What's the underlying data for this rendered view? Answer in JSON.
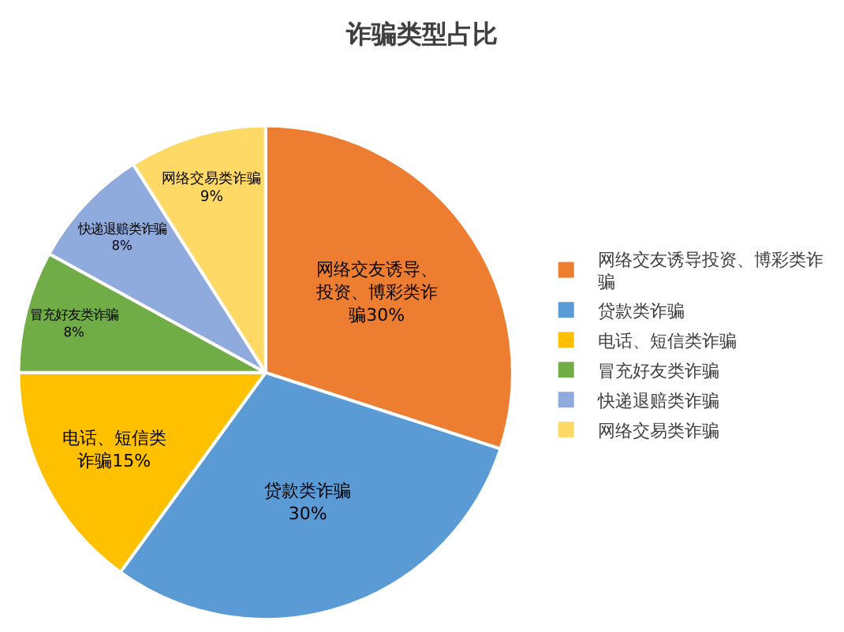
{
  "chart_data": {
    "type": "pie",
    "title": "诈骗类型占比",
    "categories": [
      "网络交友诱导投资、博彩类诈骗",
      "贷款类诈骗",
      "电话、短信类诈骗",
      "冒充好友类诈骗",
      "快递退赔类诈骗",
      "网络交易类诈骗"
    ],
    "values": [
      30,
      30,
      15,
      8,
      8,
      9
    ],
    "colors": [
      "#ed7d31",
      "#5b9bd5",
      "#ffc000",
      "#70ad47",
      "#8faadc",
      "#ffd966"
    ],
    "value_labels": [
      "网络交友诱导、投资、博彩类诈骗30%",
      "贷款类诈骗30%",
      "电话、短信类诈骗15%",
      "冒充好友类诈骗8%",
      "快递退赔类诈骗8%",
      "网络交易类诈骗9%"
    ],
    "legend": "right"
  }
}
